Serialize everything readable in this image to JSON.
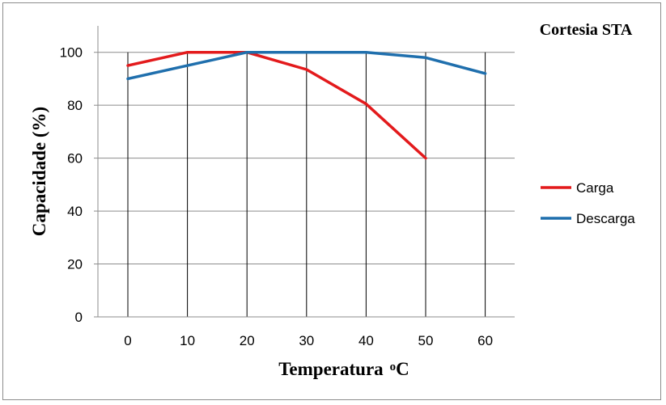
{
  "chart_data": {
    "type": "line",
    "title": "",
    "annotation": "Cortesia STA",
    "xlabel": "Temperatura",
    "xlabel_unit": "oC",
    "ylabel": "Capacidade (%)",
    "x": [
      0,
      10,
      20,
      30,
      40,
      50,
      60
    ],
    "x_ticks": [
      "0",
      "10",
      "20",
      "30",
      "40",
      "50",
      "60"
    ],
    "y_ticks": [
      "0",
      "20",
      "40",
      "60",
      "80",
      "100"
    ],
    "ylim": [
      0,
      110
    ],
    "grid": "horizontal and vertical",
    "legend_position": "right",
    "series": [
      {
        "name": "Carga",
        "color": "#e31a1c",
        "x": [
          0,
          10,
          20,
          30,
          40,
          50
        ],
        "values": [
          95,
          100,
          100,
          93.5,
          80.5,
          60
        ]
      },
      {
        "name": "Descarga",
        "color": "#1f6fad",
        "x": [
          0,
          10,
          20,
          30,
          40,
          50,
          60
        ],
        "values": [
          90,
          95,
          100,
          100,
          100,
          98,
          92
        ]
      }
    ]
  }
}
